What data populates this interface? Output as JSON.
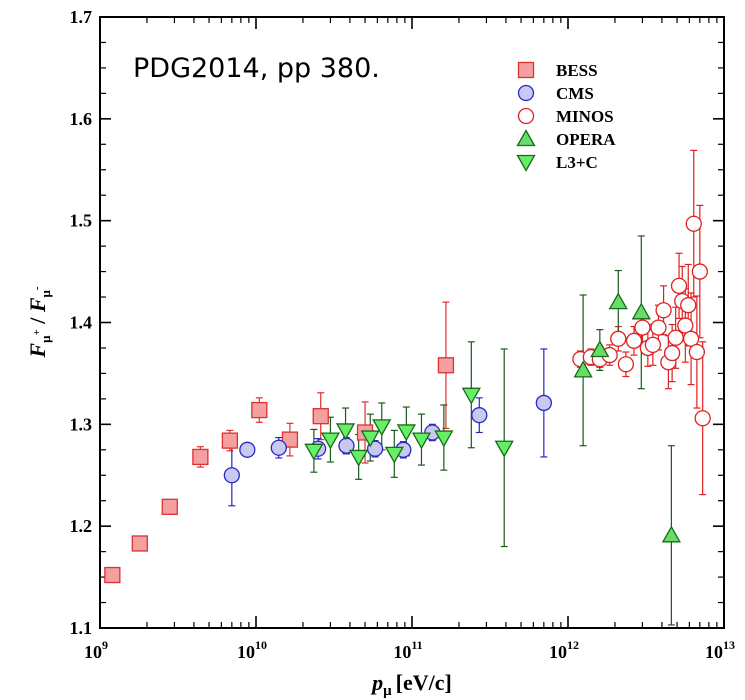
{
  "chart_data": {
    "type": "scatter",
    "title": "",
    "annotation": "PDG2014, pp 380.",
    "xlabel": {
      "main": "p",
      "sub": "μ",
      "unit": "[eV/c]"
    },
    "ylabel": {
      "f1": "F",
      "sub1": "μ",
      "sup1": "+",
      "slash": " / ",
      "f2": "F",
      "sub2": "μ",
      "sup2": "-"
    },
    "xscale": "log",
    "xlim": [
      1000000000.0,
      10000000000000.0
    ],
    "ylim": [
      1.1,
      1.7
    ],
    "grid": false,
    "legend_position": "top-right",
    "x_ticks": [
      {
        "value": 1000000000.0,
        "base": "10",
        "exp": "9"
      },
      {
        "value": 10000000000.0,
        "base": "10",
        "exp": "10"
      },
      {
        "value": 100000000000.0,
        "base": "10",
        "exp": "11"
      },
      {
        "value": 1000000000000.0,
        "base": "10",
        "exp": "12"
      },
      {
        "value": 10000000000000.0,
        "base": "10",
        "exp": "13"
      }
    ],
    "y_ticks": [
      {
        "value": 1.1,
        "label": "1.1"
      },
      {
        "value": 1.2,
        "label": "1.2"
      },
      {
        "value": 1.3,
        "label": "1.3"
      },
      {
        "value": 1.4,
        "label": "1.4"
      },
      {
        "value": 1.5,
        "label": "1.5"
      },
      {
        "value": 1.6,
        "label": "1.6"
      },
      {
        "value": 1.7,
        "label": "1.7"
      }
    ],
    "series": [
      {
        "name": "BESS",
        "marker": "square",
        "fill": "#f4a0a0",
        "stroke": "#e03030",
        "error_color": "#e03030",
        "points": [
          {
            "x": 1200000000.0,
            "y": 1.152,
            "err": 0.006
          },
          {
            "x": 1800000000.0,
            "y": 1.183,
            "err": 0.006
          },
          {
            "x": 2800000000.0,
            "y": 1.219,
            "err": 0.007
          },
          {
            "x": 4400000000.0,
            "y": 1.268,
            "err": 0.01
          },
          {
            "x": 6800000000.0,
            "y": 1.284,
            "err": 0.01
          },
          {
            "x": 10500000000.0,
            "y": 1.314,
            "err": 0.012
          },
          {
            "x": 16500000000.0,
            "y": 1.285,
            "err": 0.016
          },
          {
            "x": 26000000000.0,
            "y": 1.308,
            "err": 0.023
          },
          {
            "x": 50000000000.0,
            "y": 1.292,
            "err": 0.03
          },
          {
            "x": 165000000000.0,
            "y": 1.358,
            "err": 0.062
          }
        ]
      },
      {
        "name": "CMS",
        "marker": "circle",
        "fill": "#c8c8f0",
        "stroke": "#2828c8",
        "error_color": "#2828c8",
        "points": [
          {
            "x": 7000000000.0,
            "y": 1.25,
            "err": 0.03
          },
          {
            "x": 8800000000.0,
            "y": 1.275,
            "err": 0.006
          },
          {
            "x": 14000000000.0,
            "y": 1.277,
            "err": 0.01
          },
          {
            "x": 25000000000.0,
            "y": 1.276,
            "err": 0.01
          },
          {
            "x": 38000000000.0,
            "y": 1.279,
            "err": 0.008
          },
          {
            "x": 58000000000.0,
            "y": 1.276,
            "err": 0.008
          },
          {
            "x": 88000000000.0,
            "y": 1.275,
            "err": 0.008
          },
          {
            "x": 135000000000.0,
            "y": 1.292,
            "err": 0.008
          },
          {
            "x": 270000000000.0,
            "y": 1.309,
            "err": 0.017
          },
          {
            "x": 700000000000.0,
            "y": 1.321,
            "err": 0.053
          }
        ]
      },
      {
        "name": "MINOS",
        "marker": "circle-open",
        "fill": "#ffffff",
        "stroke": "#e02020",
        "error_color": "#e02020",
        "points": [
          {
            "x": 1200000000000.0,
            "y": 1.364,
            "err": 0.008
          },
          {
            "x": 1400000000000.0,
            "y": 1.366,
            "err": 0.008
          },
          {
            "x": 1600000000000.0,
            "y": 1.364,
            "err": 0.008
          },
          {
            "x": 1850000000000.0,
            "y": 1.368,
            "err": 0.01
          },
          {
            "x": 2100000000000.0,
            "y": 1.384,
            "err": 0.012
          },
          {
            "x": 2350000000000.0,
            "y": 1.359,
            "err": 0.012
          },
          {
            "x": 2650000000000.0,
            "y": 1.382,
            "err": 0.014
          },
          {
            "x": 3000000000000.0,
            "y": 1.395,
            "err": 0.016
          },
          {
            "x": 3250000000000.0,
            "y": 1.375,
            "err": 0.018
          },
          {
            "x": 3500000000000.0,
            "y": 1.378,
            "err": 0.02
          },
          {
            "x": 3800000000000.0,
            "y": 1.395,
            "err": 0.022
          },
          {
            "x": 4100000000000.0,
            "y": 1.412,
            "err": 0.024
          },
          {
            "x": 4400000000000.0,
            "y": 1.361,
            "err": 0.026
          },
          {
            "x": 4650000000000.0,
            "y": 1.37,
            "err": 0.028
          },
          {
            "x": 4900000000000.0,
            "y": 1.385,
            "err": 0.03
          },
          {
            "x": 5150000000000.0,
            "y": 1.436,
            "err": 0.032
          },
          {
            "x": 5400000000000.0,
            "y": 1.421,
            "err": 0.034
          },
          {
            "x": 5650000000000.0,
            "y": 1.397,
            "err": 0.036
          },
          {
            "x": 5900000000000.0,
            "y": 1.417,
            "err": 0.04
          },
          {
            "x": 6150000000000.0,
            "y": 1.384,
            "err": 0.045
          },
          {
            "x": 6400000000000.0,
            "y": 1.497,
            "err": 0.072
          },
          {
            "x": 6700000000000.0,
            "y": 1.371,
            "err": 0.055
          },
          {
            "x": 7000000000000.0,
            "y": 1.45,
            "err": 0.065
          },
          {
            "x": 7300000000000.0,
            "y": 1.306,
            "err": 0.075
          }
        ]
      },
      {
        "name": "OPERA",
        "marker": "triangle-up",
        "fill": "#66dd66",
        "stroke": "#1a6a1a",
        "error_color": "#1a5a1a",
        "points": [
          {
            "x": 1250000000000.0,
            "y": 1.353,
            "err": 0.074
          },
          {
            "x": 1600000000000.0,
            "y": 1.373,
            "err": 0.02
          },
          {
            "x": 2100000000000.0,
            "y": 1.42,
            "err": 0.031
          },
          {
            "x": 2950000000000.0,
            "y": 1.41,
            "err": 0.075
          },
          {
            "x": 4600000000000.0,
            "y": 1.191,
            "err": 0.088
          }
        ]
      },
      {
        "name": "L3+C",
        "marker": "triangle-down",
        "fill": "#66ee66",
        "stroke": "#1a6a1a",
        "error_color": "#1a5a1a",
        "points": [
          {
            "x": 23500000000.0,
            "y": 1.274,
            "err": 0.021
          },
          {
            "x": 30000000000.0,
            "y": 1.285,
            "err": 0.022
          },
          {
            "x": 37500000000.0,
            "y": 1.294,
            "err": 0.022
          },
          {
            "x": 45500000000.0,
            "y": 1.268,
            "err": 0.022
          },
          {
            "x": 54000000000.0,
            "y": 1.287,
            "err": 0.023
          },
          {
            "x": 64000000000.0,
            "y": 1.298,
            "err": 0.023
          },
          {
            "x": 77000000000.0,
            "y": 1.271,
            "err": 0.023
          },
          {
            "x": 92000000000.0,
            "y": 1.293,
            "err": 0.024
          },
          {
            "x": 115000000000.0,
            "y": 1.285,
            "err": 0.025
          },
          {
            "x": 160000000000.0,
            "y": 1.287,
            "err": 0.032
          },
          {
            "x": 240000000000.0,
            "y": 1.329,
            "err": 0.052
          },
          {
            "x": 390000000000.0,
            "y": 1.277,
            "err": 0.097
          }
        ]
      }
    ]
  }
}
